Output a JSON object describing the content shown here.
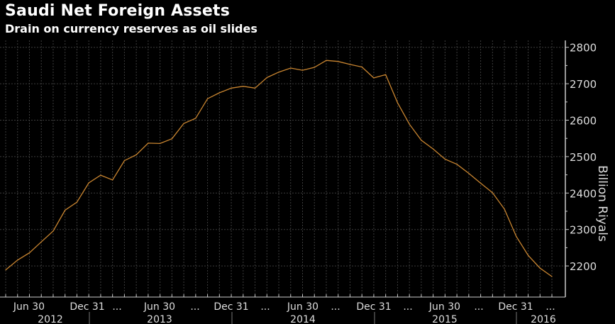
{
  "chart_data": {
    "type": "line",
    "title": "Saudi Net Foreign Assets",
    "subtitle": "Drain on currency reserves as oil slides",
    "xlabel": "",
    "ylabel": "Billion Riyals",
    "ylim": [
      2160,
      2820
    ],
    "yticks": [
      2200,
      2300,
      2400,
      2500,
      2600,
      2700,
      2800
    ],
    "ytick_labels": [
      "2200",
      "2300",
      "2400",
      "2500",
      "2600",
      "2700",
      "2800"
    ],
    "y_axis_side": "right",
    "grid": true,
    "xtick_labels": [
      "Jun 30",
      "Dec 31",
      "...",
      "Jun 30",
      "...",
      "Dec 31",
      "...",
      "Jun 30",
      "...",
      "Dec 31",
      "...",
      "Jun 30",
      "...",
      "Dec 31",
      "..."
    ],
    "year_labels": [
      "2012",
      "2013",
      "2014",
      "2015",
      "2016"
    ],
    "x": [
      "2012-04",
      "2012-05",
      "2012-06",
      "2012-07",
      "2012-08",
      "2012-09",
      "2012-10",
      "2012-11",
      "2012-12",
      "2013-01",
      "2013-02",
      "2013-03",
      "2013-04",
      "2013-05",
      "2013-06",
      "2013-07",
      "2013-08",
      "2013-09",
      "2013-10",
      "2013-11",
      "2013-12",
      "2014-01",
      "2014-02",
      "2014-03",
      "2014-04",
      "2014-05",
      "2014-06",
      "2014-07",
      "2014-08",
      "2014-09",
      "2014-10",
      "2014-11",
      "2014-12",
      "2015-01",
      "2015-02",
      "2015-03",
      "2015-04",
      "2015-05",
      "2015-06",
      "2015-07",
      "2015-08",
      "2015-09",
      "2015-10",
      "2015-11",
      "2015-12",
      "2016-01",
      "2016-02"
    ],
    "series": [
      {
        "color": "#c98530",
        "values": [
          2189,
          2216,
          2236,
          2266,
          2296,
          2353,
          2375,
          2428,
          2449,
          2436,
          2489,
          2505,
          2537,
          2536,
          2549,
          2591,
          2605,
          2659,
          2675,
          2688,
          2693,
          2688,
          2717,
          2732,
          2743,
          2737,
          2745,
          2764,
          2761,
          2753,
          2746,
          2716,
          2725,
          2648,
          2589,
          2545,
          2521,
          2493,
          2479,
          2454,
          2427,
          2401,
          2356,
          2281,
          2229,
          2194,
          2171
        ]
      }
    ]
  }
}
